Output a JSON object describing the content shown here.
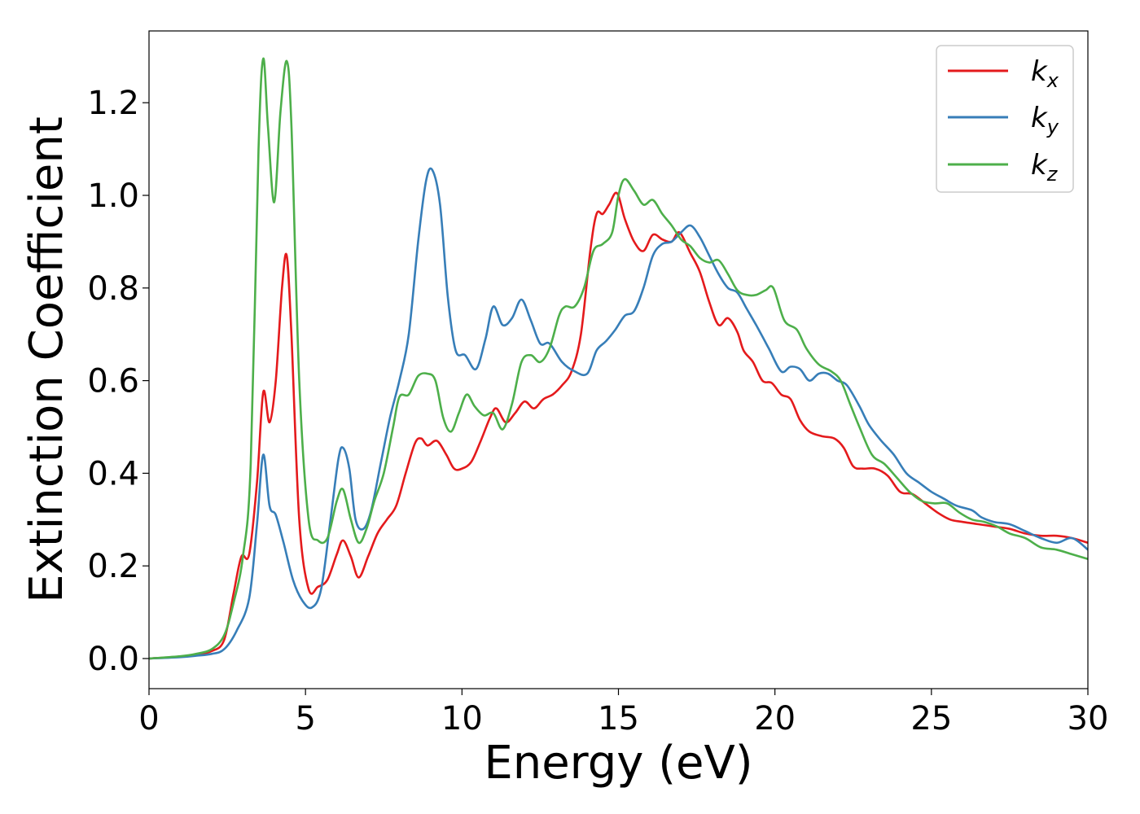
{
  "chart_data": {
    "type": "line",
    "xlabel": "Energy (eV)",
    "ylabel": "Extinction Coefficient",
    "xlim": [
      0,
      30
    ],
    "ylim": [
      -0.065,
      1.355
    ],
    "xticks": [
      0,
      5,
      10,
      15,
      20,
      25,
      30
    ],
    "xtick_labels": [
      "0",
      "5",
      "10",
      "15",
      "20",
      "25",
      "30"
    ],
    "yticks": [
      0.0,
      0.2,
      0.4,
      0.6,
      0.8,
      1.0,
      1.2
    ],
    "ytick_labels": [
      "0.0",
      "0.2",
      "0.4",
      "0.6",
      "0.8",
      "1.0",
      "1.2"
    ],
    "grid": false,
    "legend_position": "top-right",
    "series": [
      {
        "name": "k_x",
        "label_base": "k",
        "label_sub": "x",
        "color": "#e41a1c",
        "points": [
          [
            0,
            0
          ],
          [
            1,
            0.004
          ],
          [
            1.5,
            0.008
          ],
          [
            2,
            0.016
          ],
          [
            2.4,
            0.04
          ],
          [
            2.7,
            0.14
          ],
          [
            2.95,
            0.22
          ],
          [
            3.2,
            0.225
          ],
          [
            3.45,
            0.38
          ],
          [
            3.65,
            0.575
          ],
          [
            3.85,
            0.51
          ],
          [
            4.05,
            0.6
          ],
          [
            4.25,
            0.8
          ],
          [
            4.4,
            0.87
          ],
          [
            4.55,
            0.7
          ],
          [
            4.8,
            0.3
          ],
          [
            5.1,
            0.15
          ],
          [
            5.4,
            0.155
          ],
          [
            5.7,
            0.17
          ],
          [
            6.0,
            0.225
          ],
          [
            6.2,
            0.255
          ],
          [
            6.45,
            0.22
          ],
          [
            6.7,
            0.175
          ],
          [
            7.0,
            0.22
          ],
          [
            7.3,
            0.27
          ],
          [
            7.6,
            0.3
          ],
          [
            7.9,
            0.33
          ],
          [
            8.2,
            0.4
          ],
          [
            8.5,
            0.465
          ],
          [
            8.7,
            0.475
          ],
          [
            8.9,
            0.46
          ],
          [
            9.2,
            0.47
          ],
          [
            9.5,
            0.44
          ],
          [
            9.75,
            0.41
          ],
          [
            10.0,
            0.41
          ],
          [
            10.3,
            0.425
          ],
          [
            10.6,
            0.47
          ],
          [
            10.9,
            0.52
          ],
          [
            11.1,
            0.54
          ],
          [
            11.4,
            0.51
          ],
          [
            11.7,
            0.53
          ],
          [
            12.0,
            0.555
          ],
          [
            12.3,
            0.54
          ],
          [
            12.6,
            0.56
          ],
          [
            12.9,
            0.57
          ],
          [
            13.2,
            0.59
          ],
          [
            13.5,
            0.62
          ],
          [
            13.8,
            0.7
          ],
          [
            14.1,
            0.88
          ],
          [
            14.3,
            0.96
          ],
          [
            14.5,
            0.96
          ],
          [
            14.7,
            0.98
          ],
          [
            14.95,
            1.005
          ],
          [
            15.2,
            0.95
          ],
          [
            15.5,
            0.9
          ],
          [
            15.8,
            0.88
          ],
          [
            16.1,
            0.915
          ],
          [
            16.4,
            0.905
          ],
          [
            16.7,
            0.9
          ],
          [
            16.95,
            0.92
          ],
          [
            17.3,
            0.875
          ],
          [
            17.6,
            0.835
          ],
          [
            17.9,
            0.77
          ],
          [
            18.2,
            0.72
          ],
          [
            18.5,
            0.735
          ],
          [
            18.8,
            0.705
          ],
          [
            19.0,
            0.665
          ],
          [
            19.3,
            0.64
          ],
          [
            19.6,
            0.6
          ],
          [
            19.9,
            0.595
          ],
          [
            20.2,
            0.57
          ],
          [
            20.5,
            0.56
          ],
          [
            20.8,
            0.515
          ],
          [
            21.1,
            0.49
          ],
          [
            21.5,
            0.48
          ],
          [
            21.9,
            0.475
          ],
          [
            22.2,
            0.455
          ],
          [
            22.5,
            0.415
          ],
          [
            22.8,
            0.41
          ],
          [
            23.2,
            0.41
          ],
          [
            23.6,
            0.395
          ],
          [
            24.0,
            0.36
          ],
          [
            24.4,
            0.355
          ],
          [
            24.8,
            0.335
          ],
          [
            25.2,
            0.315
          ],
          [
            25.6,
            0.3
          ],
          [
            26.0,
            0.295
          ],
          [
            26.5,
            0.29
          ],
          [
            27.0,
            0.285
          ],
          [
            27.5,
            0.28
          ],
          [
            28.0,
            0.27
          ],
          [
            28.5,
            0.265
          ],
          [
            29.0,
            0.265
          ],
          [
            29.5,
            0.26
          ],
          [
            30.0,
            0.25
          ]
        ]
      },
      {
        "name": "k_y",
        "label_base": "k",
        "label_sub": "y",
        "color": "#377eb8",
        "points": [
          [
            0,
            0
          ],
          [
            1,
            0.003
          ],
          [
            1.5,
            0.006
          ],
          [
            2,
            0.01
          ],
          [
            2.4,
            0.02
          ],
          [
            2.8,
            0.06
          ],
          [
            3.2,
            0.13
          ],
          [
            3.45,
            0.29
          ],
          [
            3.65,
            0.44
          ],
          [
            3.85,
            0.33
          ],
          [
            4.05,
            0.31
          ],
          [
            4.3,
            0.25
          ],
          [
            4.6,
            0.17
          ],
          [
            4.9,
            0.125
          ],
          [
            5.2,
            0.11
          ],
          [
            5.5,
            0.15
          ],
          [
            5.8,
            0.3
          ],
          [
            6.05,
            0.43
          ],
          [
            6.2,
            0.455
          ],
          [
            6.4,
            0.41
          ],
          [
            6.6,
            0.3
          ],
          [
            6.85,
            0.28
          ],
          [
            7.1,
            0.32
          ],
          [
            7.4,
            0.42
          ],
          [
            7.7,
            0.52
          ],
          [
            8.0,
            0.6
          ],
          [
            8.3,
            0.7
          ],
          [
            8.6,
            0.9
          ],
          [
            8.85,
            1.03
          ],
          [
            9.05,
            1.055
          ],
          [
            9.3,
            0.98
          ],
          [
            9.55,
            0.78
          ],
          [
            9.8,
            0.665
          ],
          [
            10.1,
            0.655
          ],
          [
            10.45,
            0.625
          ],
          [
            10.75,
            0.69
          ],
          [
            11.0,
            0.76
          ],
          [
            11.3,
            0.72
          ],
          [
            11.6,
            0.735
          ],
          [
            11.9,
            0.775
          ],
          [
            12.2,
            0.73
          ],
          [
            12.5,
            0.68
          ],
          [
            12.8,
            0.68
          ],
          [
            13.2,
            0.64
          ],
          [
            13.6,
            0.62
          ],
          [
            14.0,
            0.615
          ],
          [
            14.3,
            0.665
          ],
          [
            14.6,
            0.685
          ],
          [
            14.9,
            0.71
          ],
          [
            15.2,
            0.74
          ],
          [
            15.5,
            0.75
          ],
          [
            15.8,
            0.8
          ],
          [
            16.1,
            0.87
          ],
          [
            16.4,
            0.895
          ],
          [
            16.7,
            0.9
          ],
          [
            17.0,
            0.92
          ],
          [
            17.3,
            0.935
          ],
          [
            17.6,
            0.91
          ],
          [
            17.9,
            0.87
          ],
          [
            18.2,
            0.83
          ],
          [
            18.5,
            0.8
          ],
          [
            18.8,
            0.79
          ],
          [
            19.1,
            0.755
          ],
          [
            19.4,
            0.72
          ],
          [
            19.8,
            0.67
          ],
          [
            20.2,
            0.62
          ],
          [
            20.5,
            0.63
          ],
          [
            20.8,
            0.625
          ],
          [
            21.1,
            0.6
          ],
          [
            21.4,
            0.615
          ],
          [
            21.7,
            0.615
          ],
          [
            22.0,
            0.6
          ],
          [
            22.3,
            0.59
          ],
          [
            22.7,
            0.545
          ],
          [
            23.0,
            0.505
          ],
          [
            23.4,
            0.47
          ],
          [
            23.8,
            0.44
          ],
          [
            24.2,
            0.4
          ],
          [
            24.6,
            0.38
          ],
          [
            25.0,
            0.36
          ],
          [
            25.4,
            0.345
          ],
          [
            25.8,
            0.33
          ],
          [
            26.3,
            0.32
          ],
          [
            26.6,
            0.305
          ],
          [
            27.0,
            0.295
          ],
          [
            27.5,
            0.29
          ],
          [
            28.0,
            0.275
          ],
          [
            28.5,
            0.26
          ],
          [
            29.0,
            0.25
          ],
          [
            29.5,
            0.26
          ],
          [
            30.0,
            0.235
          ]
        ]
      },
      {
        "name": "k_z",
        "label_base": "k",
        "label_sub": "z",
        "color": "#4daf4a",
        "points": [
          [
            0,
            0
          ],
          [
            1,
            0.005
          ],
          [
            1.5,
            0.01
          ],
          [
            2,
            0.02
          ],
          [
            2.4,
            0.05
          ],
          [
            2.7,
            0.12
          ],
          [
            3.0,
            0.22
          ],
          [
            3.25,
            0.42
          ],
          [
            3.5,
            1.1
          ],
          [
            3.65,
            1.295
          ],
          [
            3.8,
            1.15
          ],
          [
            4.0,
            0.985
          ],
          [
            4.2,
            1.18
          ],
          [
            4.4,
            1.29
          ],
          [
            4.55,
            1.15
          ],
          [
            4.8,
            0.6
          ],
          [
            5.1,
            0.3
          ],
          [
            5.4,
            0.255
          ],
          [
            5.7,
            0.26
          ],
          [
            6.0,
            0.34
          ],
          [
            6.2,
            0.365
          ],
          [
            6.45,
            0.3
          ],
          [
            6.7,
            0.25
          ],
          [
            6.95,
            0.28
          ],
          [
            7.2,
            0.34
          ],
          [
            7.5,
            0.4
          ],
          [
            7.8,
            0.5
          ],
          [
            8.0,
            0.565
          ],
          [
            8.3,
            0.57
          ],
          [
            8.6,
            0.61
          ],
          [
            8.9,
            0.615
          ],
          [
            9.15,
            0.6
          ],
          [
            9.4,
            0.52
          ],
          [
            9.65,
            0.49
          ],
          [
            9.9,
            0.53
          ],
          [
            10.15,
            0.57
          ],
          [
            10.4,
            0.545
          ],
          [
            10.7,
            0.525
          ],
          [
            11.0,
            0.53
          ],
          [
            11.3,
            0.495
          ],
          [
            11.6,
            0.55
          ],
          [
            11.9,
            0.64
          ],
          [
            12.2,
            0.655
          ],
          [
            12.5,
            0.64
          ],
          [
            12.8,
            0.67
          ],
          [
            13.1,
            0.74
          ],
          [
            13.3,
            0.76
          ],
          [
            13.6,
            0.76
          ],
          [
            13.9,
            0.8
          ],
          [
            14.2,
            0.88
          ],
          [
            14.5,
            0.895
          ],
          [
            14.8,
            0.92
          ],
          [
            15.0,
            1.0
          ],
          [
            15.2,
            1.035
          ],
          [
            15.5,
            1.01
          ],
          [
            15.8,
            0.98
          ],
          [
            16.1,
            0.99
          ],
          [
            16.4,
            0.96
          ],
          [
            16.7,
            0.935
          ],
          [
            17.0,
            0.905
          ],
          [
            17.3,
            0.89
          ],
          [
            17.6,
            0.865
          ],
          [
            17.9,
            0.855
          ],
          [
            18.2,
            0.86
          ],
          [
            18.5,
            0.83
          ],
          [
            18.8,
            0.795
          ],
          [
            19.1,
            0.785
          ],
          [
            19.4,
            0.785
          ],
          [
            19.7,
            0.795
          ],
          [
            19.95,
            0.8
          ],
          [
            20.3,
            0.73
          ],
          [
            20.7,
            0.71
          ],
          [
            21.0,
            0.67
          ],
          [
            21.4,
            0.635
          ],
          [
            21.8,
            0.62
          ],
          [
            22.1,
            0.6
          ],
          [
            22.4,
            0.55
          ],
          [
            22.7,
            0.5
          ],
          [
            23.1,
            0.44
          ],
          [
            23.5,
            0.42
          ],
          [
            23.9,
            0.39
          ],
          [
            24.3,
            0.36
          ],
          [
            24.7,
            0.34
          ],
          [
            25.1,
            0.335
          ],
          [
            25.5,
            0.335
          ],
          [
            25.9,
            0.315
          ],
          [
            26.3,
            0.3
          ],
          [
            26.7,
            0.295
          ],
          [
            27.1,
            0.285
          ],
          [
            27.5,
            0.27
          ],
          [
            28.0,
            0.26
          ],
          [
            28.5,
            0.24
          ],
          [
            29.0,
            0.235
          ],
          [
            29.5,
            0.225
          ],
          [
            30.0,
            0.215
          ]
        ]
      }
    ]
  }
}
